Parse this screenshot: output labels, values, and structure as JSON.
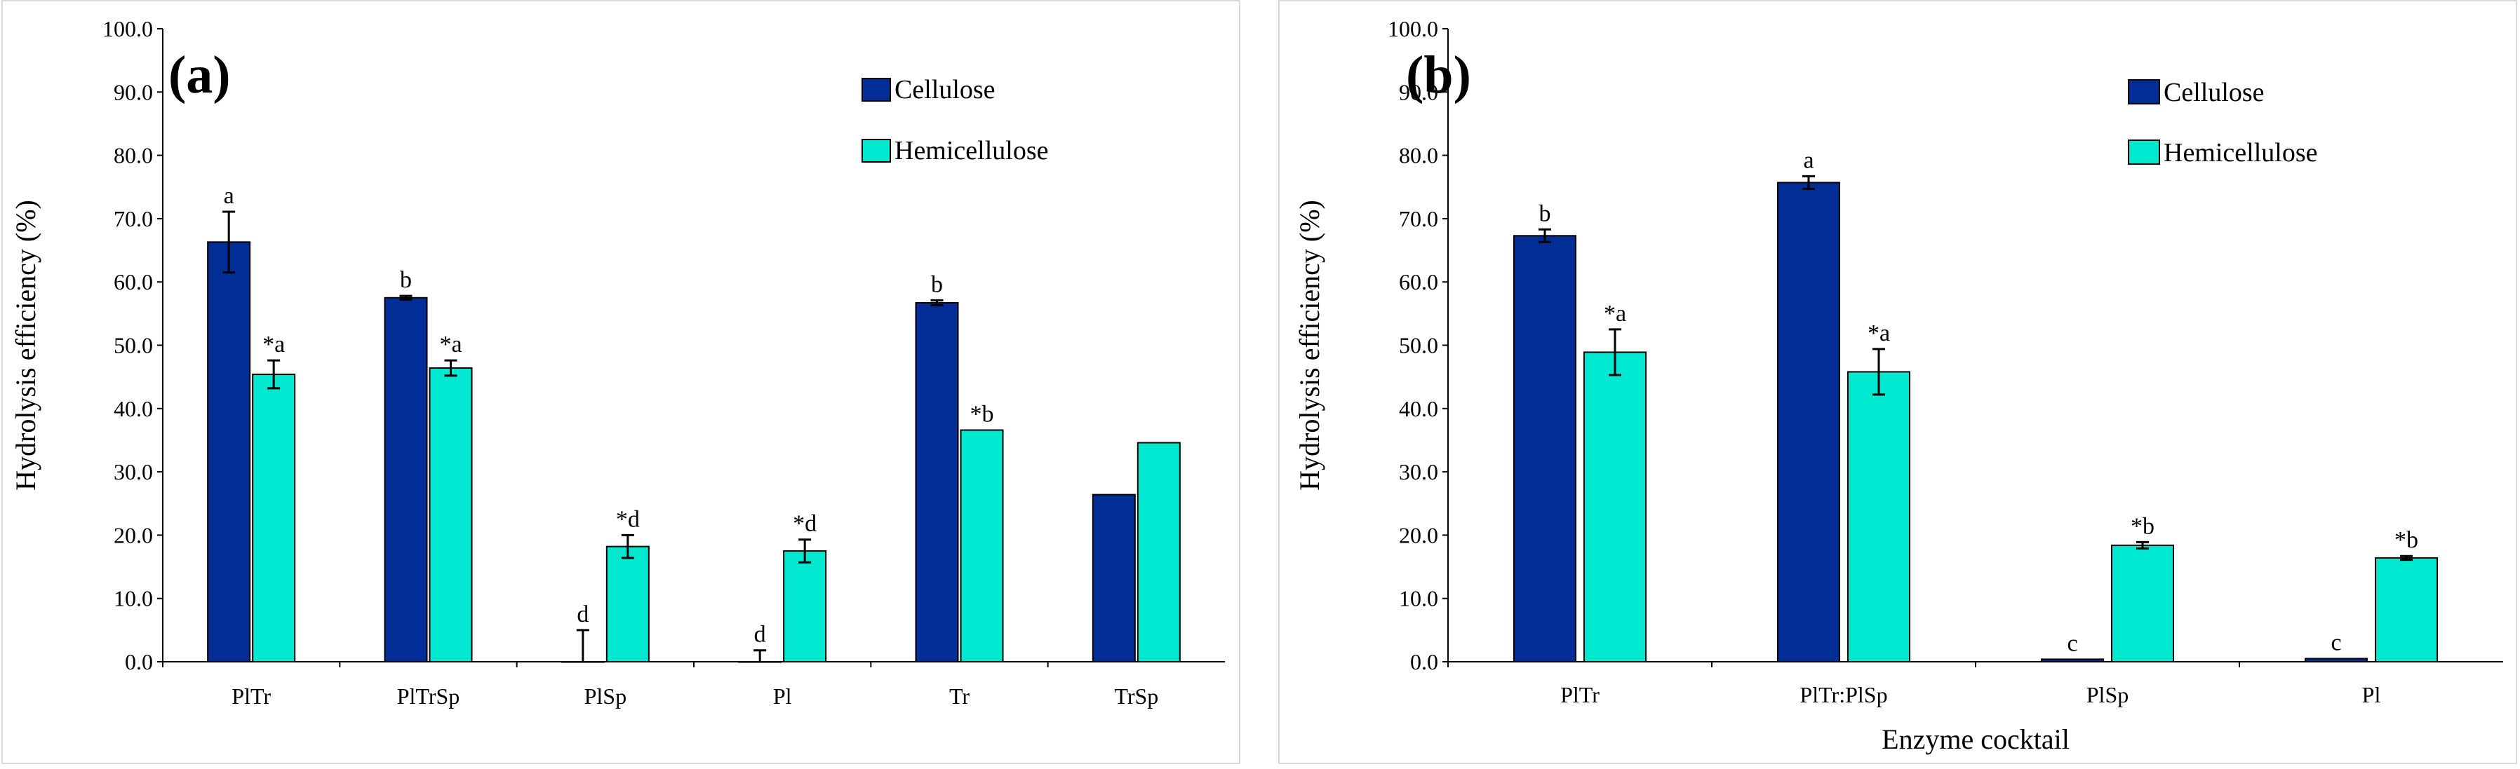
{
  "chart_data": [
    {
      "type": "bar",
      "panel_label": "(a)",
      "ylabel": "Hydrolysis efficiency (%)",
      "xlabel": "",
      "ylim": [
        0,
        100
      ],
      "y_ticks": [
        "0.0",
        "10.0",
        "20.0",
        "30.0",
        "40.0",
        "50.0",
        "60.0",
        "70.0",
        "80.0",
        "90.0",
        "100.0"
      ],
      "categories": [
        "PlTr",
        "PlTrSp",
        "PlSp",
        "Pl",
        "Tr",
        "TrSp"
      ],
      "series": [
        {
          "name": "Cellulose",
          "color": "#002D96",
          "values": [
            66.3,
            57.5,
            0.0,
            0.0,
            56.7,
            26.4
          ],
          "errors": [
            4.8,
            0.3,
            5.0,
            1.8,
            0.4,
            0.0
          ],
          "labels": [
            "a",
            "b",
            "d",
            "d",
            "b",
            ""
          ]
        },
        {
          "name": "Hemicellulose",
          "color": "#00E8CF",
          "values": [
            45.4,
            46.4,
            18.2,
            17.5,
            36.6,
            34.6
          ],
          "errors": [
            2.2,
            1.2,
            1.8,
            1.8,
            0.0,
            0.0
          ],
          "labels": [
            "*a",
            "*a",
            "*d",
            "*d",
            "*b",
            ""
          ]
        }
      ]
    },
    {
      "type": "bar",
      "panel_label": "(b)",
      "ylabel": "Hydrolysis efficiency (%)",
      "xlabel": "Enzyme cocktail",
      "ylim": [
        0,
        100
      ],
      "y_ticks": [
        "0.0",
        "10.0",
        "20.0",
        "30.0",
        "40.0",
        "50.0",
        "60.0",
        "70.0",
        "80.0",
        "90.0",
        "100.0"
      ],
      "categories": [
        "PlTr",
        "PlTr:PlSp",
        "PlSp",
        "Pl"
      ],
      "series": [
        {
          "name": "Cellulose",
          "color": "#002D96",
          "values": [
            67.3,
            75.7,
            0.4,
            0.5
          ],
          "errors": [
            1.0,
            1.0,
            0.0,
            0.0
          ],
          "labels": [
            "b",
            "a",
            "c",
            "c"
          ]
        },
        {
          "name": "Hemicellulose",
          "color": "#00E8CF",
          "values": [
            48.9,
            45.8,
            18.4,
            16.4
          ],
          "errors": [
            3.6,
            3.6,
            0.5,
            0.3
          ],
          "labels": [
            "*a",
            "*a",
            "*b",
            "*b"
          ]
        }
      ]
    }
  ]
}
